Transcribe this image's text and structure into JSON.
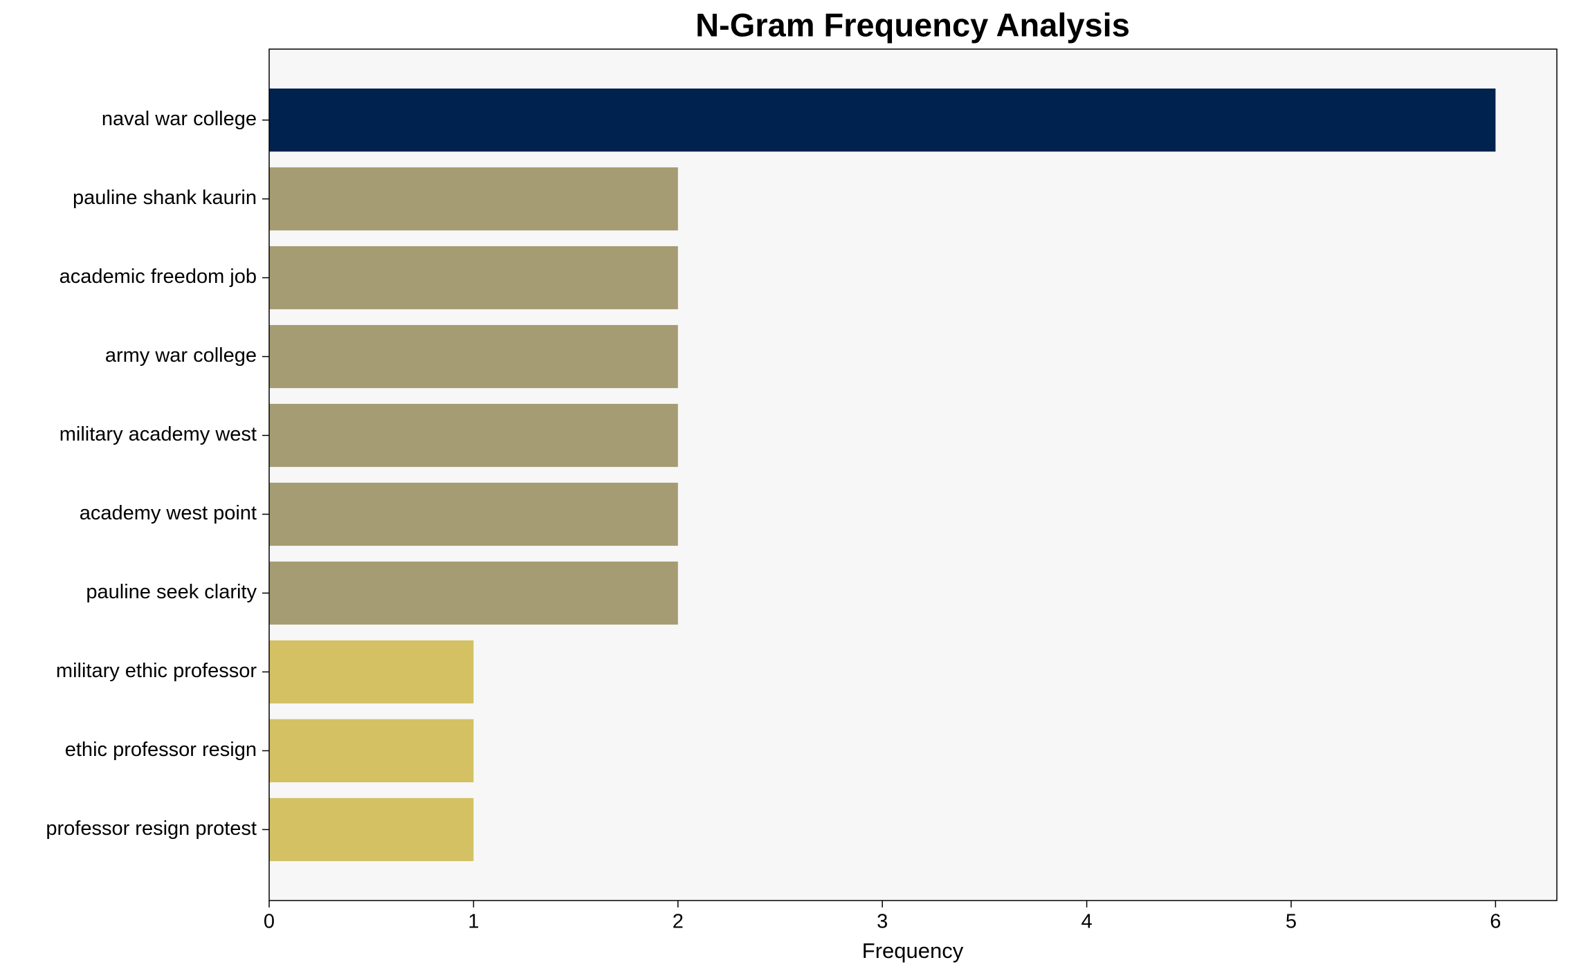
{
  "chart_data": {
    "type": "barh",
    "title": "N-Gram Frequency Analysis",
    "xlabel": "Frequency",
    "categories": [
      "naval war college",
      "pauline shank kaurin",
      "academic freedom job",
      "army war college",
      "military academy west",
      "academy west point",
      "pauline seek clarity",
      "military ethic professor",
      "ethic professor resign",
      "professor resign protest"
    ],
    "values": [
      6,
      2,
      2,
      2,
      2,
      2,
      2,
      1,
      1,
      1
    ],
    "colors": [
      "#00224e",
      "#a59c74",
      "#a59c74",
      "#a59c74",
      "#a59c74",
      "#a59c74",
      "#a59c74",
      "#d3c164",
      "#d3c164",
      "#d3c164"
    ],
    "xlim": [
      0,
      6.3
    ],
    "xticks": [
      0,
      1,
      2,
      3,
      4,
      5,
      6
    ]
  }
}
